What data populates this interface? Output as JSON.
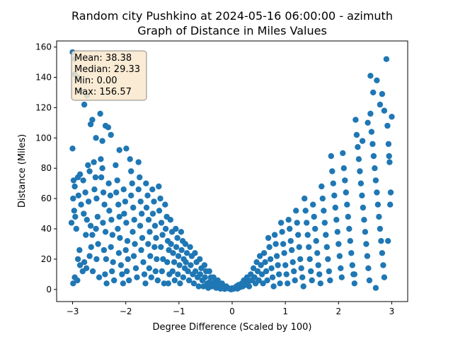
{
  "chart_data": {
    "type": "scatter",
    "title_line1": "Random city Pushkino at 2024-05-16 06:00:00  - azimuth",
    "title_line2": "Graph of Distance in Miles Values",
    "xlabel": "Degree Difference (Scaled by 100)",
    "ylabel": "Distance (Miles)",
    "xlim": [
      -3.3,
      3.3
    ],
    "ylim": [
      -8,
      164
    ],
    "x_ticks": [
      -3,
      -2,
      -1,
      0,
      1,
      2,
      3
    ],
    "x_tick_labels": [
      "−3",
      "−2",
      "−1",
      "0",
      "1",
      "2",
      "3"
    ],
    "y_ticks": [
      0,
      20,
      40,
      60,
      80,
      100,
      120,
      140,
      160
    ],
    "y_tick_labels": [
      "0",
      "20",
      "40",
      "60",
      "80",
      "100",
      "120",
      "140",
      "160"
    ],
    "grid": false,
    "colors": {
      "marker": "#1f77b4",
      "stats_box_fill": "#f8e8cc",
      "stats_box_edge": "#8a8a8a"
    },
    "stats": [
      "Mean: 38.38",
      "Median: 29.33",
      "Min: 0.00",
      "Max: 156.57"
    ],
    "points": [
      [
        -3.0,
        156.6
      ],
      [
        -2.96,
        152.0
      ],
      [
        -2.96,
        142.0
      ],
      [
        -2.9,
        140.0
      ],
      [
        -2.85,
        131.0
      ],
      [
        -2.78,
        122.0
      ],
      [
        -2.73,
        128.0
      ],
      [
        -2.66,
        109.0
      ],
      [
        -2.63,
        112.0
      ],
      [
        -2.56,
        100.0
      ],
      [
        -2.48,
        116.0
      ],
      [
        -2.44,
        98.0
      ],
      [
        -2.38,
        108.0
      ],
      [
        -2.33,
        107.0
      ],
      [
        -2.28,
        102.0
      ],
      [
        -2.12,
        92.0
      ],
      [
        -1.99,
        93.0
      ],
      [
        -3.0,
        93.0
      ],
      [
        -2.98,
        72.0
      ],
      [
        -2.96,
        68.0
      ],
      [
        -2.99,
        60.0
      ],
      [
        -2.97,
        52.0
      ],
      [
        -2.95,
        48.0
      ],
      [
        -3.02,
        44.0
      ],
      [
        -2.93,
        40.0
      ],
      [
        -2.96,
        8.0
      ],
      [
        -2.99,
        4.0
      ],
      [
        -2.91,
        6.0
      ],
      [
        -2.9,
        74.0
      ],
      [
        -2.86,
        76.0
      ],
      [
        -2.89,
        62.0
      ],
      [
        -2.84,
        56.0
      ],
      [
        -2.87,
        26.0
      ],
      [
        -2.9,
        20.0
      ],
      [
        -2.86,
        16.0
      ],
      [
        -2.81,
        12.0
      ],
      [
        -2.8,
        72.0
      ],
      [
        -2.76,
        64.0
      ],
      [
        -2.79,
        50.0
      ],
      [
        -2.73,
        46.0
      ],
      [
        -2.75,
        36.0
      ],
      [
        -2.78,
        18.0
      ],
      [
        -2.74,
        14.0
      ],
      [
        -2.71,
        82.0
      ],
      [
        -2.68,
        78.0
      ],
      [
        -2.7,
        58.0
      ],
      [
        -2.66,
        42.0
      ],
      [
        -2.63,
        36.0
      ],
      [
        -2.65,
        28.0
      ],
      [
        -2.68,
        22.0
      ],
      [
        -2.62,
        12.0
      ],
      [
        -2.6,
        84.0
      ],
      [
        -2.57,
        74.0
      ],
      [
        -2.59,
        66.0
      ],
      [
        -2.55,
        60.0
      ],
      [
        -2.53,
        48.0
      ],
      [
        -2.56,
        40.0
      ],
      [
        -2.52,
        30.0
      ],
      [
        -2.55,
        20.0
      ],
      [
        -2.5,
        8.0
      ],
      [
        -2.47,
        86.0
      ],
      [
        -2.44,
        80.0
      ],
      [
        -2.46,
        74.0
      ],
      [
        -2.42,
        64.0
      ],
      [
        -2.4,
        56.0
      ],
      [
        -2.43,
        44.0
      ],
      [
        -2.38,
        38.0
      ],
      [
        -2.41,
        26.0
      ],
      [
        -2.37,
        20.0
      ],
      [
        -2.39,
        10.0
      ],
      [
        -2.36,
        4.0
      ],
      [
        -2.32,
        70.0
      ],
      [
        -2.29,
        62.0
      ],
      [
        -2.31,
        52.0
      ],
      [
        -2.27,
        46.0
      ],
      [
        -2.25,
        36.0
      ],
      [
        -2.28,
        28.0
      ],
      [
        -2.24,
        18.0
      ],
      [
        -2.26,
        12.0
      ],
      [
        -2.22,
        6.0
      ],
      [
        -2.19,
        82.0
      ],
      [
        -2.16,
        72.0
      ],
      [
        -2.18,
        64.0
      ],
      [
        -2.14,
        56.0
      ],
      [
        -2.12,
        48.0
      ],
      [
        -2.15,
        40.0
      ],
      [
        -2.11,
        34.0
      ],
      [
        -2.13,
        24.0
      ],
      [
        -2.09,
        16.0
      ],
      [
        -2.07,
        10.0
      ],
      [
        -2.05,
        4.0
      ],
      [
        -2.04,
        66.0
      ],
      [
        -2.01,
        58.0
      ],
      [
        -2.03,
        50.0
      ],
      [
        -1.99,
        44.0
      ],
      [
        -1.97,
        32.0
      ],
      [
        -2.0,
        26.0
      ],
      [
        -1.96,
        20.0
      ],
      [
        -1.98,
        12.0
      ],
      [
        -1.94,
        6.0
      ],
      [
        -1.92,
        86.0
      ],
      [
        -1.9,
        78.0
      ],
      [
        -1.88,
        70.0
      ],
      [
        -1.9,
        62.0
      ],
      [
        -1.86,
        54.0
      ],
      [
        -1.84,
        46.0
      ],
      [
        -1.87,
        38.0
      ],
      [
        -1.83,
        30.0
      ],
      [
        -1.85,
        22.0
      ],
      [
        -1.81,
        14.0
      ],
      [
        -1.79,
        8.0
      ],
      [
        -1.76,
        84.0
      ],
      [
        -1.74,
        74.0
      ],
      [
        -1.76,
        66.0
      ],
      [
        -1.72,
        58.0
      ],
      [
        -1.7,
        50.0
      ],
      [
        -1.73,
        42.0
      ],
      [
        -1.69,
        34.0
      ],
      [
        -1.71,
        26.0
      ],
      [
        -1.67,
        18.0
      ],
      [
        -1.65,
        10.0
      ],
      [
        -1.63,
        4.0
      ],
      [
        -1.62,
        70.0
      ],
      [
        -1.59,
        62.0
      ],
      [
        -1.61,
        54.0
      ],
      [
        -1.57,
        46.0
      ],
      [
        -1.55,
        38.0
      ],
      [
        -1.58,
        30.0
      ],
      [
        -1.54,
        22.0
      ],
      [
        -1.56,
        14.0
      ],
      [
        -1.52,
        8.0
      ],
      [
        -1.5,
        66.0
      ],
      [
        -1.47,
        58.0
      ],
      [
        -1.49,
        50.0
      ],
      [
        -1.45,
        42.0
      ],
      [
        -1.43,
        34.0
      ],
      [
        -1.46,
        28.0
      ],
      [
        -1.42,
        20.0
      ],
      [
        -1.44,
        12.0
      ],
      [
        -1.4,
        6.0
      ],
      [
        -1.38,
        68.0
      ],
      [
        -1.35,
        60.0
      ],
      [
        -1.37,
        52.0
      ],
      [
        -1.33,
        44.0
      ],
      [
        -1.31,
        36.0
      ],
      [
        -1.34,
        28.0
      ],
      [
        -1.3,
        20.0
      ],
      [
        -1.32,
        12.0
      ],
      [
        -1.28,
        4.0
      ],
      [
        -1.26,
        56.0
      ],
      [
        -1.23,
        48.0
      ],
      [
        -1.25,
        40.0
      ],
      [
        -1.21,
        32.0
      ],
      [
        -1.19,
        26.0
      ],
      [
        -1.22,
        18.0
      ],
      [
        -1.18,
        10.0
      ],
      [
        -1.2,
        4.0
      ],
      [
        -1.16,
        46.0
      ],
      [
        -1.13,
        38.0
      ],
      [
        -1.15,
        30.0
      ],
      [
        -1.11,
        24.0
      ],
      [
        -1.09,
        18.0
      ],
      [
        -1.12,
        12.0
      ],
      [
        -1.08,
        6.0
      ],
      [
        -1.06,
        40.0
      ],
      [
        -1.03,
        34.0
      ],
      [
        -1.05,
        28.0
      ],
      [
        -1.01,
        22.0
      ],
      [
        -0.99,
        16.0
      ],
      [
        -1.02,
        10.0
      ],
      [
        -0.98,
        4.0
      ],
      [
        -0.96,
        38.0
      ],
      [
        -0.93,
        32.0
      ],
      [
        -0.95,
        26.0
      ],
      [
        -0.91,
        20.0
      ],
      [
        -0.89,
        14.0
      ],
      [
        -0.92,
        8.0
      ],
      [
        -0.88,
        30.0
      ],
      [
        -0.85,
        24.0
      ],
      [
        -0.87,
        18.0
      ],
      [
        -0.83,
        12.0
      ],
      [
        -0.81,
        6.0
      ],
      [
        -0.79,
        28.0
      ],
      [
        -0.76,
        22.0
      ],
      [
        -0.78,
        16.0
      ],
      [
        -0.74,
        10.0
      ],
      [
        -0.72,
        4.0
      ],
      [
        -0.7,
        24.0
      ],
      [
        -0.67,
        18.0
      ],
      [
        -0.69,
        12.0
      ],
      [
        -0.65,
        8.0
      ],
      [
        -0.63,
        2.0
      ],
      [
        -0.61,
        20.0
      ],
      [
        -0.58,
        14.0
      ],
      [
        -0.6,
        10.0
      ],
      [
        -0.56,
        6.0
      ],
      [
        -0.54,
        2.0
      ],
      [
        -0.52,
        16.0
      ],
      [
        -0.49,
        12.0
      ],
      [
        -0.51,
        8.0
      ],
      [
        -0.47,
        4.0
      ],
      [
        -0.45,
        1.0
      ],
      [
        -0.43,
        12.0
      ],
      [
        -0.4,
        8.0
      ],
      [
        -0.42,
        5.0
      ],
      [
        -0.38,
        2.0
      ],
      [
        -0.35,
        8.0
      ],
      [
        -0.32,
        5.0
      ],
      [
        -0.34,
        3.0
      ],
      [
        -0.3,
        1.0
      ],
      [
        -0.27,
        6.0
      ],
      [
        -0.24,
        4.0
      ],
      [
        -0.26,
        2.0
      ],
      [
        -0.22,
        0.5
      ],
      [
        -0.19,
        4.0
      ],
      [
        -0.16,
        2.0
      ],
      [
        -0.18,
        1.0
      ],
      [
        -0.14,
        0.3
      ],
      [
        -0.11,
        2.0
      ],
      [
        -0.08,
        1.0
      ],
      [
        -0.05,
        0.5
      ],
      [
        -0.02,
        0.0
      ],
      [
        0.0,
        0.8
      ],
      [
        0.02,
        0.3
      ],
      [
        0.05,
        1.0
      ],
      [
        0.08,
        2.0
      ],
      [
        0.1,
        0.5
      ],
      [
        0.12,
        3.0
      ],
      [
        0.15,
        1.5
      ],
      [
        0.18,
        4.0
      ],
      [
        0.2,
        2.0
      ],
      [
        0.22,
        6.0
      ],
      [
        0.25,
        3.0
      ],
      [
        0.28,
        8.0
      ],
      [
        0.3,
        5.0
      ],
      [
        0.32,
        2.0
      ],
      [
        0.35,
        10.0
      ],
      [
        0.37,
        6.0
      ],
      [
        0.4,
        14.0
      ],
      [
        0.42,
        8.0
      ],
      [
        0.44,
        4.0
      ],
      [
        0.46,
        18.0
      ],
      [
        0.48,
        12.0
      ],
      [
        0.5,
        6.0
      ],
      [
        0.52,
        22.0
      ],
      [
        0.54,
        16.0
      ],
      [
        0.56,
        10.0
      ],
      [
        0.58,
        4.0
      ],
      [
        0.6,
        24.0
      ],
      [
        0.62,
        18.0
      ],
      [
        0.64,
        12.0
      ],
      [
        0.66,
        6.0
      ],
      [
        0.68,
        34.0
      ],
      [
        0.7,
        28.0
      ],
      [
        0.72,
        20.0
      ],
      [
        0.74,
        14.0
      ],
      [
        0.76,
        8.0
      ],
      [
        0.78,
        2.0
      ],
      [
        0.8,
        36.0
      ],
      [
        0.82,
        30.0
      ],
      [
        0.84,
        22.0
      ],
      [
        0.86,
        16.0
      ],
      [
        0.88,
        10.0
      ],
      [
        0.9,
        4.0
      ],
      [
        0.92,
        44.0
      ],
      [
        0.94,
        38.0
      ],
      [
        0.96,
        30.0
      ],
      [
        0.98,
        24.0
      ],
      [
        1.0,
        16.0
      ],
      [
        1.02,
        10.0
      ],
      [
        1.04,
        4.0
      ],
      [
        1.06,
        46.0
      ],
      [
        1.08,
        40.0
      ],
      [
        1.1,
        32.0
      ],
      [
        1.12,
        26.0
      ],
      [
        1.14,
        18.0
      ],
      [
        1.16,
        12.0
      ],
      [
        1.18,
        6.0
      ],
      [
        1.2,
        52.0
      ],
      [
        1.22,
        44.0
      ],
      [
        1.24,
        36.0
      ],
      [
        1.26,
        28.0
      ],
      [
        1.28,
        20.0
      ],
      [
        1.3,
        14.0
      ],
      [
        1.32,
        8.0
      ],
      [
        1.34,
        2.0
      ],
      [
        1.36,
        60.0
      ],
      [
        1.38,
        52.0
      ],
      [
        1.4,
        44.0
      ],
      [
        1.42,
        36.0
      ],
      [
        1.44,
        28.0
      ],
      [
        1.46,
        20.0
      ],
      [
        1.48,
        12.0
      ],
      [
        1.5,
        6.0
      ],
      [
        1.52,
        56.0
      ],
      [
        1.54,
        48.0
      ],
      [
        1.56,
        40.0
      ],
      [
        1.58,
        32.0
      ],
      [
        1.6,
        24.0
      ],
      [
        1.62,
        16.0
      ],
      [
        1.64,
        10.0
      ],
      [
        1.66,
        4.0
      ],
      [
        1.68,
        68.0
      ],
      [
        1.7,
        60.0
      ],
      [
        1.72,
        52.0
      ],
      [
        1.74,
        44.0
      ],
      [
        1.76,
        36.0
      ],
      [
        1.78,
        28.0
      ],
      [
        1.8,
        20.0
      ],
      [
        1.82,
        12.0
      ],
      [
        1.84,
        6.0
      ],
      [
        1.86,
        88.0
      ],
      [
        1.88,
        78.0
      ],
      [
        1.9,
        70.0
      ],
      [
        1.92,
        62.0
      ],
      [
        1.94,
        54.0
      ],
      [
        1.96,
        46.0
      ],
      [
        1.98,
        38.0
      ],
      [
        2.0,
        30.0
      ],
      [
        2.02,
        22.0
      ],
      [
        2.04,
        14.0
      ],
      [
        2.06,
        8.0
      ],
      [
        2.08,
        90.0
      ],
      [
        2.1,
        80.0
      ],
      [
        2.12,
        72.0
      ],
      [
        2.14,
        64.0
      ],
      [
        2.16,
        56.0
      ],
      [
        2.18,
        48.0
      ],
      [
        2.2,
        40.0
      ],
      [
        2.22,
        32.0
      ],
      [
        2.24,
        24.0
      ],
      [
        2.26,
        16.0
      ],
      [
        2.28,
        10.0
      ],
      [
        2.3,
        4.0
      ],
      [
        2.32,
        112.0
      ],
      [
        2.34,
        102.0
      ],
      [
        2.36,
        94.0
      ],
      [
        2.38,
        86.0
      ],
      [
        2.4,
        78.0
      ],
      [
        2.42,
        70.0
      ],
      [
        2.44,
        62.0
      ],
      [
        2.46,
        54.0
      ],
      [
        2.48,
        46.0
      ],
      [
        2.5,
        38.0
      ],
      [
        2.52,
        30.0
      ],
      [
        2.54,
        22.0
      ],
      [
        2.56,
        14.0
      ],
      [
        2.58,
        6.0
      ],
      [
        2.6,
        116.0
      ],
      [
        2.62,
        104.0
      ],
      [
        2.64,
        96.0
      ],
      [
        2.66,
        88.0
      ],
      [
        2.68,
        80.0
      ],
      [
        2.7,
        72.0
      ],
      [
        2.72,
        64.0
      ],
      [
        2.74,
        56.0
      ],
      [
        2.76,
        48.0
      ],
      [
        2.78,
        40.0
      ],
      [
        2.8,
        32.0
      ],
      [
        2.82,
        24.0
      ],
      [
        2.84,
        16.0
      ],
      [
        2.86,
        8.0
      ],
      [
        2.6,
        141.0
      ],
      [
        2.65,
        130.0
      ],
      [
        2.72,
        138.0
      ],
      [
        2.78,
        122.0
      ],
      [
        2.82,
        129.0
      ],
      [
        2.86,
        118.0
      ],
      [
        2.9,
        152.0
      ],
      [
        2.92,
        108.0
      ],
      [
        2.94,
        96.0
      ],
      [
        2.95,
        88.0
      ],
      [
        2.96,
        84.0
      ],
      [
        2.97,
        56.0
      ],
      [
        2.98,
        64.0
      ],
      [
        3.0,
        114.0
      ],
      [
        2.93,
        32.0
      ],
      [
        2.7,
        1.0
      ],
      [
        2.3,
        10.0
      ],
      [
        2.45,
        98.0
      ],
      [
        2.55,
        110.0
      ]
    ]
  }
}
